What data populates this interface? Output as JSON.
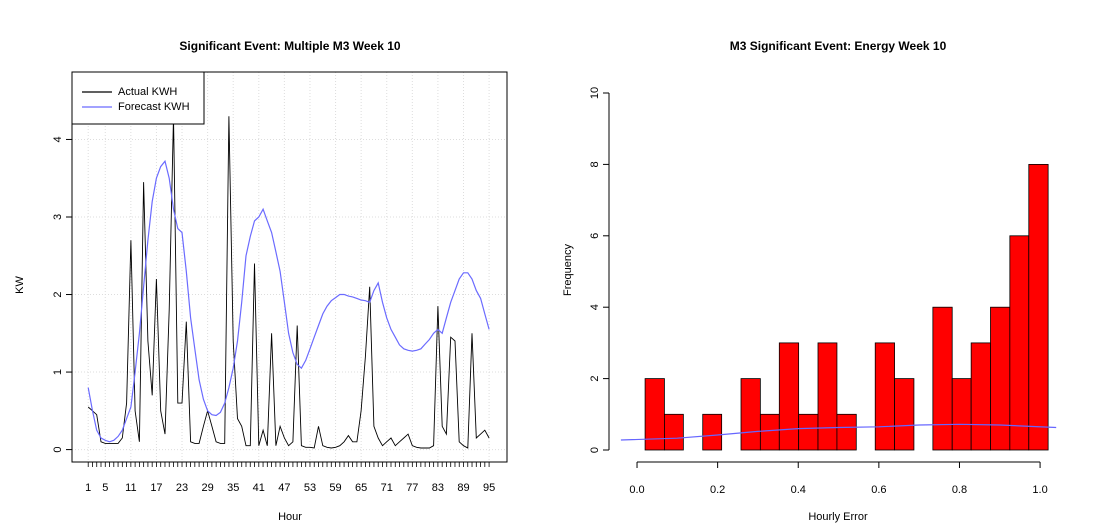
{
  "chart_data": [
    {
      "type": "line",
      "title": "Significant Event: Multiple M3 Week 10",
      "x_label": "Hour",
      "y_label": "KW",
      "x": [
        1,
        2,
        3,
        4,
        5,
        6,
        7,
        8,
        9,
        10,
        11,
        12,
        13,
        14,
        15,
        16,
        17,
        18,
        19,
        20,
        21,
        22,
        23,
        24,
        25,
        26,
        27,
        28,
        29,
        30,
        31,
        32,
        33,
        34,
        35,
        36,
        37,
        38,
        39,
        40,
        41,
        42,
        43,
        44,
        45,
        46,
        47,
        48,
        49,
        50,
        51,
        52,
        53,
        54,
        55,
        56,
        57,
        58,
        59,
        60,
        61,
        62,
        63,
        64,
        65,
        66,
        67,
        68,
        69,
        70,
        71,
        72,
        73,
        74,
        75,
        76,
        77,
        78,
        79,
        80,
        81,
        82,
        83,
        84,
        85,
        86,
        87,
        88,
        89,
        90,
        91,
        92,
        93,
        94,
        95
      ],
      "series": [
        {
          "name": "Actual KWH",
          "color": "#000000",
          "values": [
            0.55,
            0.5,
            0.45,
            0.1,
            0.08,
            0.08,
            0.08,
            0.08,
            0.15,
            0.6,
            2.7,
            0.5,
            0.1,
            3.45,
            1.4,
            0.7,
            2.2,
            0.5,
            0.2,
            1.8,
            4.3,
            0.6,
            0.6,
            1.65,
            0.1,
            0.08,
            0.08,
            0.3,
            0.5,
            0.3,
            0.1,
            0.08,
            0.08,
            4.3,
            1.4,
            0.4,
            0.3,
            0.05,
            0.05,
            2.4,
            0.05,
            0.25,
            0.05,
            1.5,
            0.05,
            0.3,
            0.15,
            0.05,
            0.1,
            1.6,
            0.05,
            0.03,
            0.03,
            0.02,
            0.3,
            0.05,
            0.03,
            0.02,
            0.03,
            0.05,
            0.1,
            0.18,
            0.1,
            0.1,
            0.5,
            1.2,
            2.1,
            0.3,
            0.15,
            0.05,
            0.1,
            0.15,
            0.05,
            0.1,
            0.15,
            0.2,
            0.05,
            0.03,
            0.02,
            0.02,
            0.02,
            0.05,
            1.85,
            0.3,
            0.2,
            1.45,
            1.4,
            0.1,
            0.05,
            0.02,
            1.5,
            0.15,
            0.2,
            0.25,
            0.15
          ]
        },
        {
          "name": "Forecast KWH",
          "color": "#6b6bff",
          "values": [
            0.8,
            0.5,
            0.25,
            0.15,
            0.12,
            0.1,
            0.12,
            0.17,
            0.25,
            0.4,
            0.55,
            1.0,
            1.5,
            2.1,
            2.7,
            3.2,
            3.5,
            3.65,
            3.72,
            3.5,
            3.1,
            2.85,
            2.8,
            2.3,
            1.7,
            1.3,
            0.9,
            0.65,
            0.5,
            0.45,
            0.44,
            0.48,
            0.6,
            0.8,
            1.05,
            1.4,
            1.9,
            2.5,
            2.75,
            2.95,
            3.0,
            3.1,
            2.95,
            2.8,
            2.55,
            2.3,
            1.9,
            1.5,
            1.25,
            1.1,
            1.05,
            1.15,
            1.3,
            1.45,
            1.6,
            1.75,
            1.85,
            1.92,
            1.96,
            2.0,
            2.0,
            1.98,
            1.97,
            1.95,
            1.93,
            1.92,
            1.9,
            2.05,
            2.15,
            1.9,
            1.7,
            1.55,
            1.45,
            1.35,
            1.3,
            1.28,
            1.27,
            1.28,
            1.3,
            1.36,
            1.42,
            1.5,
            1.55,
            1.5,
            1.7,
            1.9,
            2.05,
            2.2,
            2.28,
            2.28,
            2.2,
            2.05,
            1.95,
            1.75,
            1.55
          ]
        }
      ],
      "xlim": [
        -2.8,
        99.2
      ],
      "ylim": [
        -0.16,
        4.87
      ],
      "xticks": [
        1,
        5,
        11,
        17,
        23,
        29,
        35,
        41,
        47,
        53,
        59,
        65,
        71,
        77,
        83,
        89,
        95
      ],
      "yticks": [
        0,
        1,
        2,
        3,
        4
      ],
      "grid": true,
      "legend": "top-left"
    },
    {
      "type": "histogram",
      "title": "M3 Significant Event: Energy Week 10",
      "x_label": "Hourly Error",
      "y_label": "Frequency",
      "bins": [
        0.02,
        0.068,
        0.115,
        0.163,
        0.21,
        0.258,
        0.306,
        0.353,
        0.401,
        0.449,
        0.496,
        0.544,
        0.591,
        0.639,
        0.687,
        0.734,
        0.782,
        0.829,
        0.877,
        0.925,
        0.972,
        1.02
      ],
      "values": [
        2,
        1,
        0,
        1,
        0,
        2,
        1,
        3,
        1,
        3,
        1,
        0,
        3,
        2,
        0,
        4,
        2,
        3,
        4,
        6,
        8
      ],
      "color": "#ff0000",
      "curve": {
        "color": "#6666ff",
        "x": [
          -0.04,
          0.1,
          0.2,
          0.3,
          0.4,
          0.5,
          0.6,
          0.7,
          0.8,
          0.9,
          1.04
        ],
        "values": [
          0.28,
          0.33,
          0.42,
          0.52,
          0.6,
          0.63,
          0.65,
          0.7,
          0.72,
          0.7,
          0.63
        ]
      },
      "xlim": [
        -0.04,
        1.04
      ],
      "ylim": [
        0,
        10
      ],
      "xticks": [
        {
          "value": 0,
          "label": "0.0"
        },
        0.2,
        0.4,
        0.6,
        0.8,
        {
          "value": 1,
          "label": "1.0"
        }
      ],
      "yticks": [
        0,
        2,
        4,
        6,
        8,
        10
      ]
    }
  ]
}
